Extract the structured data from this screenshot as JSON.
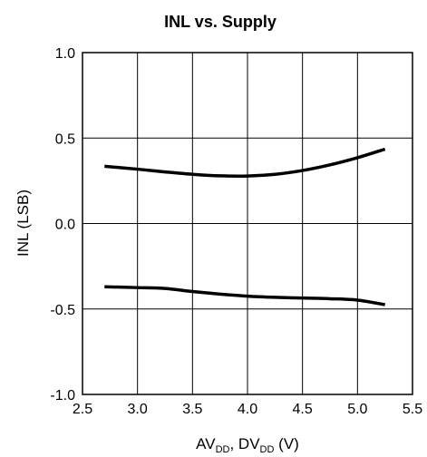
{
  "chart_data": {
    "type": "line",
    "title": "INL vs. Supply",
    "xlabel": {
      "parts": [
        {
          "text": "AV",
          "sub": false
        },
        {
          "text": "DD",
          "sub": true
        },
        {
          "text": ", DV",
          "sub": false
        },
        {
          "text": "DD",
          "sub": true
        },
        {
          "text": " (V)",
          "sub": false
        }
      ]
    },
    "ylabel": "INL (LSB)",
    "xlim": [
      2.5,
      5.5
    ],
    "ylim": [
      -1.0,
      1.0
    ],
    "xticks": [
      2.5,
      3.0,
      3.5,
      4.0,
      4.5,
      5.0,
      5.5
    ],
    "xtick_labels": [
      "2.5",
      "3.0",
      "3.5",
      "4.0",
      "4.5",
      "5.0",
      "5.5"
    ],
    "yticks": [
      -1.0,
      -0.5,
      0.0,
      0.5,
      1.0
    ],
    "ytick_labels": [
      "-1.0",
      "-0.5",
      "0.0",
      "0.5",
      "1.0"
    ],
    "grid": true,
    "series": [
      {
        "x": [
          2.7,
          3.0,
          3.25,
          3.5,
          3.75,
          4.0,
          4.25,
          4.5,
          4.75,
          5.0,
          5.25
        ],
        "values": [
          0.335,
          0.318,
          0.302,
          0.288,
          0.279,
          0.278,
          0.288,
          0.31,
          0.343,
          0.385,
          0.435
        ]
      },
      {
        "x": [
          2.7,
          3.0,
          3.25,
          3.5,
          3.75,
          4.0,
          4.25,
          4.5,
          4.75,
          5.0,
          5.25
        ],
        "values": [
          -0.37,
          -0.375,
          -0.38,
          -0.398,
          -0.413,
          -0.425,
          -0.432,
          -0.436,
          -0.44,
          -0.448,
          -0.475
        ]
      }
    ],
    "line_color": "#000000"
  }
}
